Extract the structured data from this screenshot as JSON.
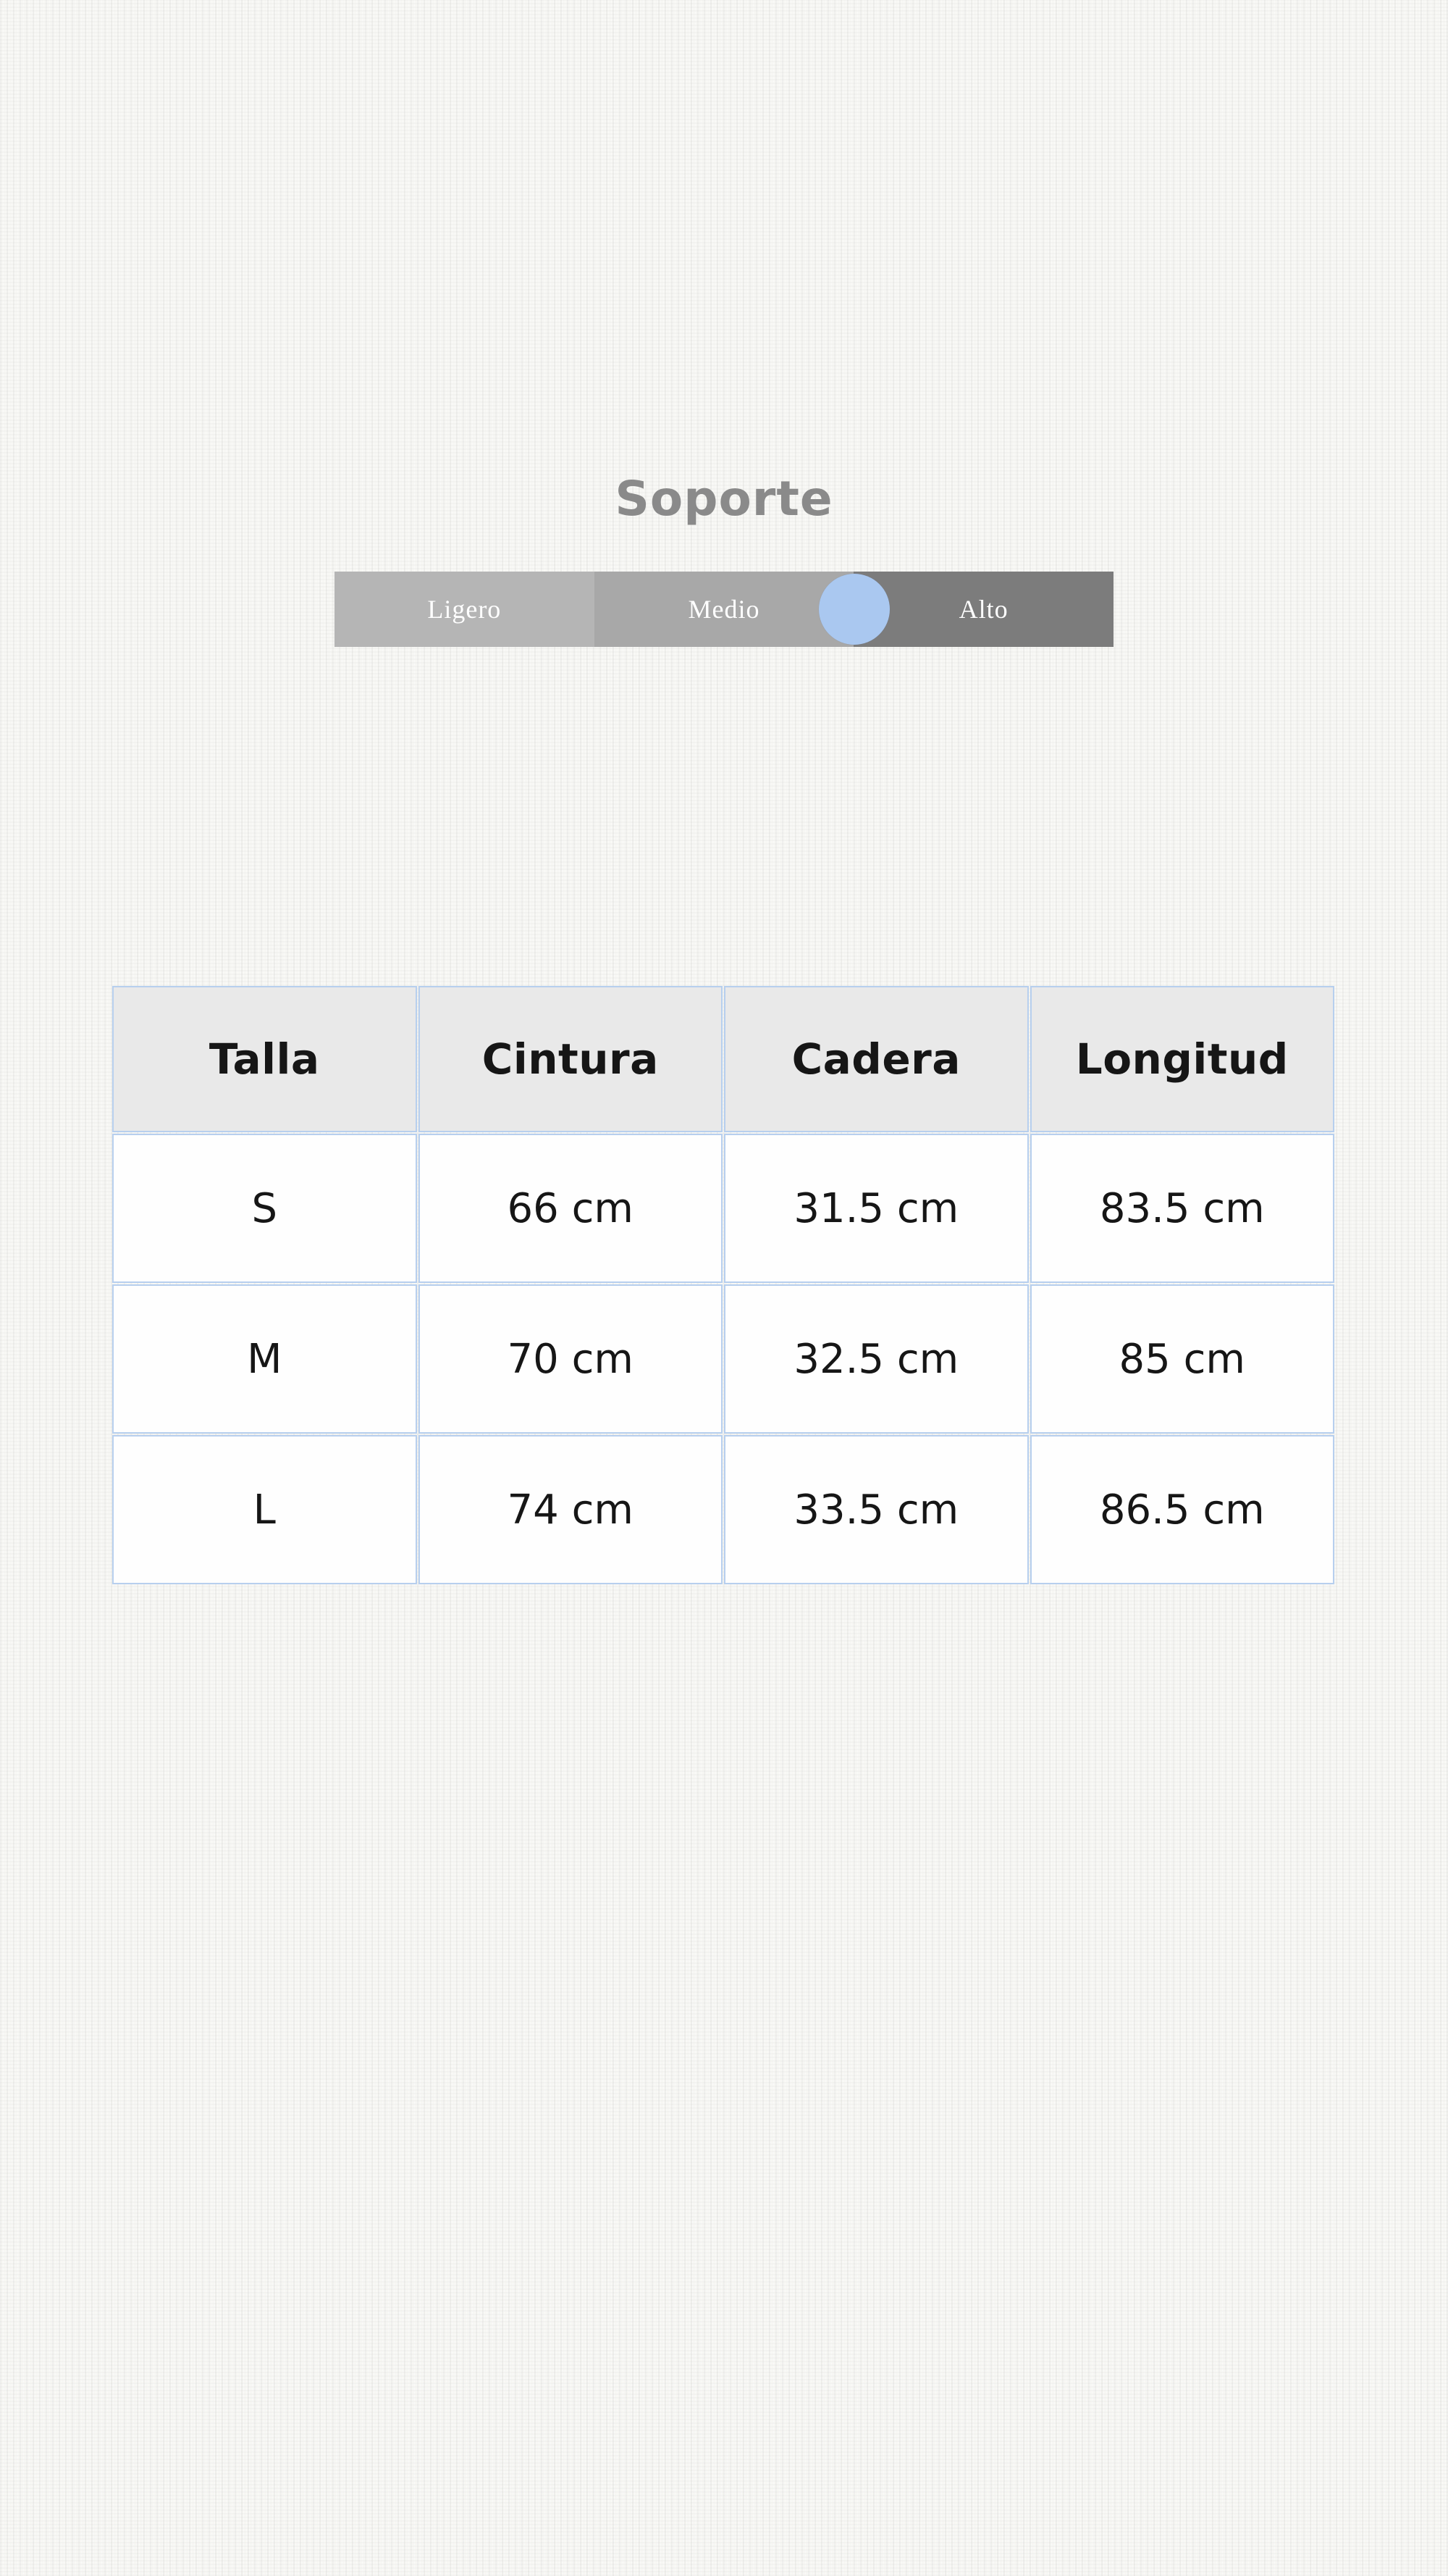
{
  "header": {
    "title": "Soporte"
  },
  "slider": {
    "options": [
      {
        "label": "Ligero"
      },
      {
        "label": "Medio"
      },
      {
        "label": "Alto"
      }
    ],
    "knob_position_percent": 66.7
  },
  "table": {
    "headers": [
      "Talla",
      "Cintura",
      "Cadera",
      "Longitud"
    ],
    "rows": [
      [
        "S",
        "66 cm",
        "31.5 cm",
        "83.5 cm"
      ],
      [
        "M",
        "70 cm",
        "32.5 cm",
        "85 cm"
      ],
      [
        "L",
        "74 cm",
        "33.5 cm",
        "86.5 cm"
      ]
    ]
  },
  "colors": {
    "title_text": "#8a8a8a",
    "segment_ligero": "#b5b5b5",
    "segment_medio": "#a8a8a8",
    "segment_alto": "#7c7c7c",
    "segment_label_text": "#ffffff",
    "knob": "#aac8f0",
    "table_border": "#b7cfee",
    "table_header_bg": "#e9e9e9",
    "cell_text": "#161616"
  }
}
